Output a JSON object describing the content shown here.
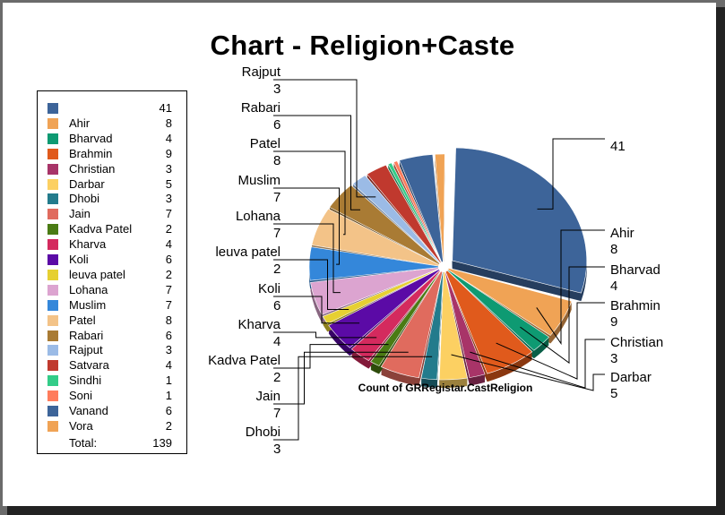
{
  "chart_data": {
    "type": "pie",
    "title": "Chart - Religion+Caste",
    "series_label": "Count of GRRegistar.CastReligion",
    "legend_position": "left",
    "total_label": "Total:",
    "total_value": 139,
    "slices": [
      {
        "name": "",
        "value": 41,
        "color": "#3d6499"
      },
      {
        "name": "Ahir",
        "value": 8,
        "color": "#f0a355"
      },
      {
        "name": "Bharvad",
        "value": 4,
        "color": "#0e9a72"
      },
      {
        "name": "Brahmin",
        "value": 9,
        "color": "#e05a1c"
      },
      {
        "name": "Christian",
        "value": 3,
        "color": "#a83468"
      },
      {
        "name": "Darbar",
        "value": 5,
        "color": "#fcd062"
      },
      {
        "name": "Dhobi",
        "value": 3,
        "color": "#237b8c"
      },
      {
        "name": "Jain",
        "value": 7,
        "color": "#e06b5e"
      },
      {
        "name": "Kadva Patel",
        "value": 2,
        "color": "#4a7b14"
      },
      {
        "name": "Kharva",
        "value": 4,
        "color": "#d42a5e"
      },
      {
        "name": "Koli",
        "value": 6,
        "color": "#5b0aa6"
      },
      {
        "name": "leuva patel",
        "value": 2,
        "color": "#e6d032"
      },
      {
        "name": "Lohana",
        "value": 7,
        "color": "#dca4d0"
      },
      {
        "name": "Muslim",
        "value": 7,
        "color": "#3487da"
      },
      {
        "name": "Patel",
        "value": 8,
        "color": "#f3c388"
      },
      {
        "name": "Rabari",
        "value": 6,
        "color": "#a97b34"
      },
      {
        "name": "Rajput",
        "value": 3,
        "color": "#9bbbe6"
      },
      {
        "name": "Satvara",
        "value": 4,
        "color": "#c0392e"
      },
      {
        "name": "Sindhi",
        "value": 1,
        "color": "#33cc88"
      },
      {
        "name": "Soni",
        "value": 1,
        "color": "#ff7c5c"
      },
      {
        "name": "Vanand",
        "value": 6,
        "color": "#3d6499"
      },
      {
        "name": "Vora",
        "value": 2,
        "color": "#f0a355"
      }
    ]
  }
}
